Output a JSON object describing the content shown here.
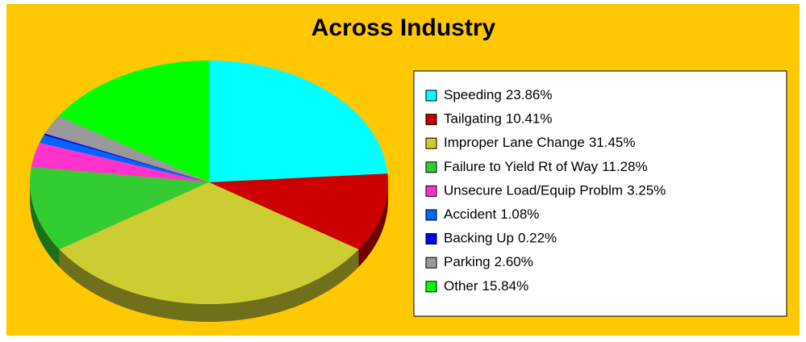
{
  "chart_data": {
    "type": "pie",
    "title": "Across Industry",
    "categories": [
      "Speeding",
      "Tailgating",
      "Improper Lane Change",
      "Failure to Yield Rt of Way",
      "Unsecure Load/Equip Problm",
      "Accident",
      "Backing Up",
      "Parking",
      "Other"
    ],
    "values": [
      23.86,
      10.41,
      31.45,
      11.28,
      3.25,
      1.08,
      0.22,
      2.6,
      15.84
    ],
    "value_labels": [
      "23.86%",
      "10.41%",
      "31.45%",
      "11.28%",
      "3.25%",
      "1.08%",
      "0.22%",
      "2.60%",
      "15.84%"
    ],
    "colors": [
      "#00ffff",
      "#cc0000",
      "#cccc33",
      "#33cc33",
      "#ff33cc",
      "#0066ff",
      "#0000ff",
      "#999999",
      "#00ff00"
    ]
  }
}
